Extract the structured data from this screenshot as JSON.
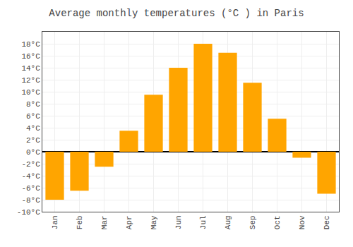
{
  "chart_data": {
    "type": "bar",
    "title": "Average monthly temperatures (°C ) in Paris",
    "categories": [
      "Jan",
      "Feb",
      "Mar",
      "Apr",
      "May",
      "Jun",
      "Jul",
      "Aug",
      "Sep",
      "Oct",
      "Nov",
      "Dec"
    ],
    "values": [
      -8.0,
      -6.5,
      -2.5,
      3.5,
      9.5,
      14.0,
      18.0,
      16.5,
      11.5,
      5.5,
      -1.0,
      -7.0
    ],
    "color": "#FFA500",
    "ylim": [
      -10,
      20
    ],
    "yticks": [
      {
        "value": -10,
        "label": "-10°C"
      },
      {
        "value": -8,
        "label": "-8°C"
      },
      {
        "value": -6,
        "label": "-6°C"
      },
      {
        "value": -4,
        "label": "-4°C"
      },
      {
        "value": -2,
        "label": "-2°C"
      },
      {
        "value": 0,
        "label": "0°C"
      },
      {
        "value": 2,
        "label": "2°C"
      },
      {
        "value": 4,
        "label": "4°C"
      },
      {
        "value": 6,
        "label": "6°C"
      },
      {
        "value": 8,
        "label": "8°C"
      },
      {
        "value": 10,
        "label": "10°C"
      },
      {
        "value": 12,
        "label": "12°C"
      },
      {
        "value": 14,
        "label": "14°C"
      },
      {
        "value": 16,
        "label": "16°C"
      },
      {
        "value": 18,
        "label": "18°C"
      }
    ],
    "grid": true
  }
}
